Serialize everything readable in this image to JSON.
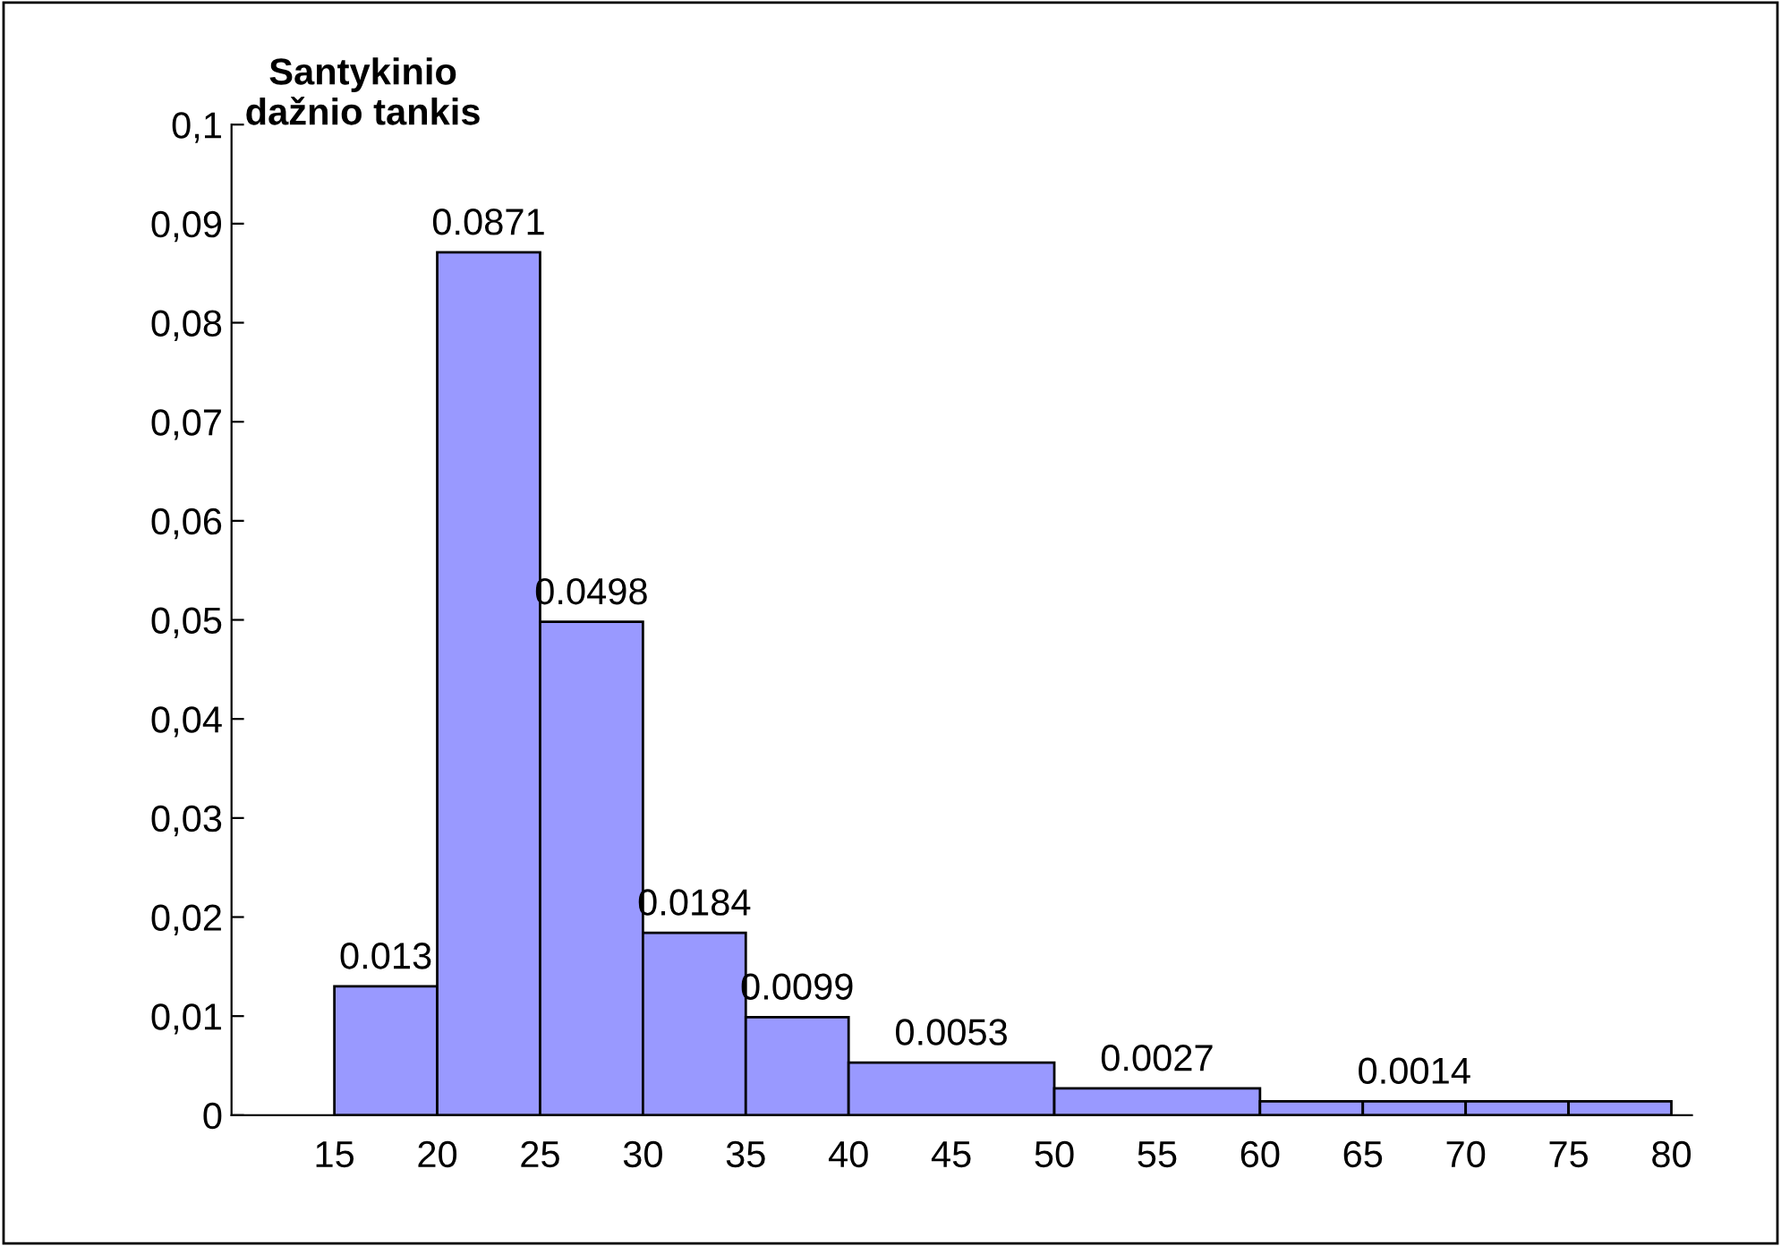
{
  "chart_data": {
    "type": "histogram",
    "ylabel": "Santykinio\ndažnio tankis",
    "bins": [
      15,
      20,
      25,
      30,
      35,
      40,
      50,
      60,
      65,
      70,
      75,
      80
    ],
    "values": [
      0.013,
      0.0871,
      0.0498,
      0.0184,
      0.0099,
      0.0053,
      0.0027,
      0.0014,
      0.0014,
      0.0014,
      0.0014
    ],
    "value_labels": [
      "0.013",
      "0.0871",
      "0.0498",
      "0.0184",
      "0.0099",
      "0.0053",
      "0.0027",
      null,
      "0.0014",
      null,
      null
    ],
    "color": "#9999ff",
    "grid": false,
    "xlim": [
      10,
      81
    ],
    "xticks": [
      15,
      20,
      25,
      30,
      35,
      40,
      45,
      50,
      55,
      60,
      65,
      70,
      75,
      80
    ],
    "ylim": [
      0,
      0.1
    ],
    "yticks": [
      {
        "value": 0,
        "label": "0"
      },
      {
        "value": 0.01,
        "label": "0,01"
      },
      {
        "value": 0.02,
        "label": "0,02"
      },
      {
        "value": 0.03,
        "label": "0,03"
      },
      {
        "value": 0.04,
        "label": "0,04"
      },
      {
        "value": 0.05,
        "label": "0,05"
      },
      {
        "value": 0.06,
        "label": "0,06"
      },
      {
        "value": 0.07,
        "label": "0,07"
      },
      {
        "value": 0.08,
        "label": "0,08"
      },
      {
        "value": 0.09,
        "label": "0,09"
      },
      {
        "value": 0.1,
        "label": "0,1"
      }
    ]
  }
}
